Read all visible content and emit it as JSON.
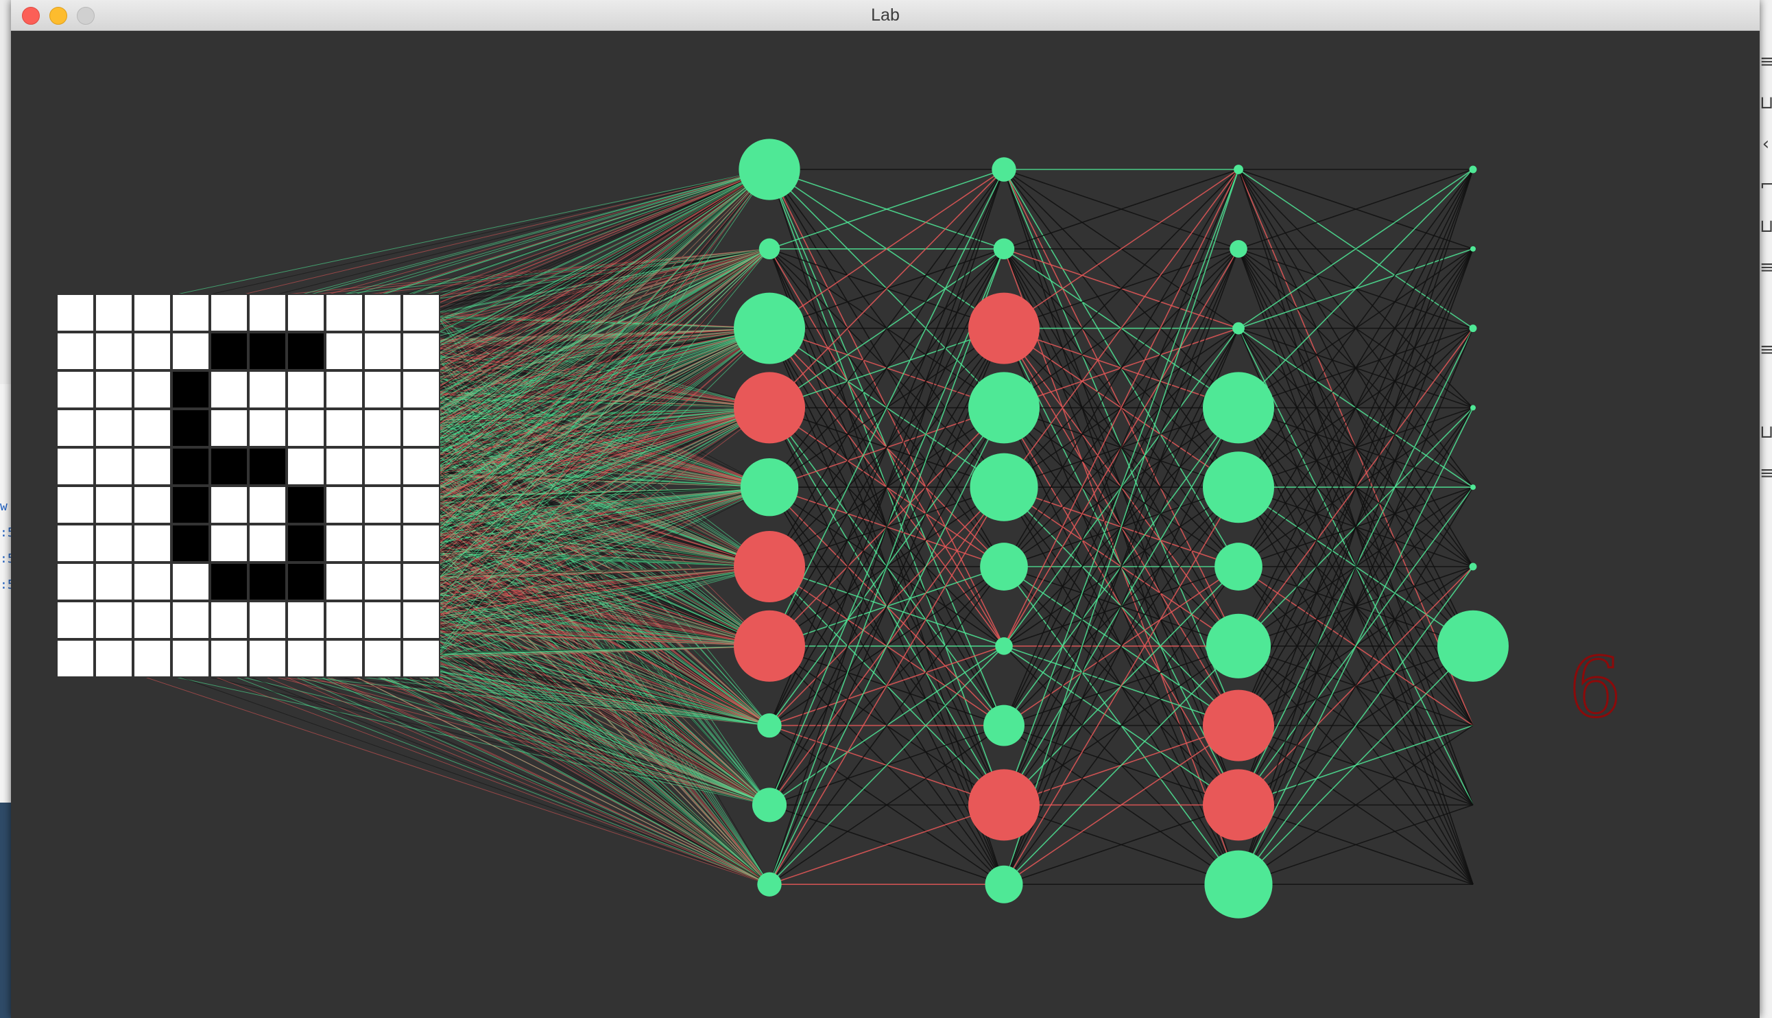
{
  "window": {
    "title": "Lab"
  },
  "colors": {
    "background": "#333333",
    "positive": "#4fe896",
    "negative": "#e85858",
    "neutral_edge": "#111111",
    "output_digit": "#8b0a0a"
  },
  "input_grid": {
    "rows": 10,
    "cols": 10,
    "pixels": [
      [
        0,
        0,
        0,
        0,
        0,
        0,
        0,
        0,
        0,
        0
      ],
      [
        0,
        0,
        0,
        0,
        1,
        1,
        1,
        0,
        0,
        0
      ],
      [
        0,
        0,
        0,
        1,
        0,
        0,
        0,
        0,
        0,
        0
      ],
      [
        0,
        0,
        0,
        1,
        0,
        0,
        0,
        0,
        0,
        0
      ],
      [
        0,
        0,
        0,
        1,
        1,
        1,
        0,
        0,
        0,
        0
      ],
      [
        0,
        0,
        0,
        1,
        0,
        0,
        1,
        0,
        0,
        0
      ],
      [
        0,
        0,
        0,
        1,
        0,
        0,
        1,
        0,
        0,
        0
      ],
      [
        0,
        0,
        0,
        0,
        1,
        1,
        1,
        0,
        0,
        0
      ],
      [
        0,
        0,
        0,
        0,
        0,
        0,
        0,
        0,
        0,
        0
      ],
      [
        0,
        0,
        0,
        0,
        0,
        0,
        0,
        0,
        0,
        0
      ]
    ]
  },
  "network": {
    "layers": [
      {
        "name": "layer-1",
        "nodes": [
          {
            "a": 0.85,
            "s": "pos"
          },
          {
            "a": 0.25,
            "s": "pos"
          },
          {
            "a": 1.0,
            "s": "pos"
          },
          {
            "a": 1.0,
            "s": "neg"
          },
          {
            "a": 0.8,
            "s": "pos"
          },
          {
            "a": 1.0,
            "s": "neg"
          },
          {
            "a": 1.0,
            "s": "neg"
          },
          {
            "a": 0.3,
            "s": "pos"
          },
          {
            "a": 0.45,
            "s": "pos"
          },
          {
            "a": 0.3,
            "s": "pos"
          }
        ]
      },
      {
        "name": "layer-2",
        "nodes": [
          {
            "a": 0.3,
            "s": "pos"
          },
          {
            "a": 0.25,
            "s": "pos"
          },
          {
            "a": 1.0,
            "s": "neg"
          },
          {
            "a": 1.0,
            "s": "pos"
          },
          {
            "a": 0.95,
            "s": "pos"
          },
          {
            "a": 0.65,
            "s": "pos"
          },
          {
            "a": 0.2,
            "s": "pos"
          },
          {
            "a": 0.55,
            "s": "pos"
          },
          {
            "a": 1.0,
            "s": "neg"
          },
          {
            "a": 0.5,
            "s": "pos"
          }
        ]
      },
      {
        "name": "layer-3",
        "nodes": [
          {
            "a": 0.08,
            "s": "pos"
          },
          {
            "a": 0.2,
            "s": "pos"
          },
          {
            "a": 0.12,
            "s": "pos"
          },
          {
            "a": 1.0,
            "s": "pos"
          },
          {
            "a": 1.0,
            "s": "pos"
          },
          {
            "a": 0.65,
            "s": "pos"
          },
          {
            "a": 0.9,
            "s": "pos"
          },
          {
            "a": 1.0,
            "s": "neg"
          },
          {
            "a": 1.0,
            "s": "neg"
          },
          {
            "a": 0.95,
            "s": "pos"
          }
        ]
      },
      {
        "name": "output-layer",
        "nodes": [
          {
            "a": 0.05,
            "s": "pos"
          },
          {
            "a": 0.02,
            "s": "pos"
          },
          {
            "a": 0.05,
            "s": "pos"
          },
          {
            "a": 0.02,
            "s": "pos"
          },
          {
            "a": 0.02,
            "s": "pos"
          },
          {
            "a": 0.05,
            "s": "pos"
          },
          {
            "a": 1.0,
            "s": "pos"
          },
          {
            "a": 0.0,
            "s": "pos"
          },
          {
            "a": 0.0,
            "s": "pos"
          },
          {
            "a": 0.0,
            "s": "pos"
          }
        ]
      }
    ]
  },
  "prediction": {
    "digit": "6"
  }
}
